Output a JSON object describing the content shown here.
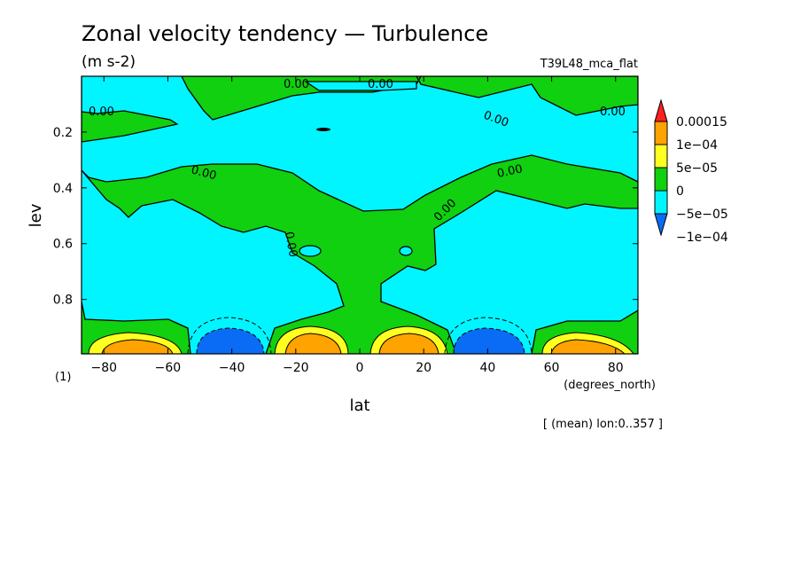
{
  "chart_data": {
    "type": "contour",
    "title": "Zonal velocity tendency — Turbulence",
    "units": "(m s-2)",
    "run_label": "T39L48_mca_flat",
    "xlabel": "lat",
    "ylabel": "lev",
    "x_unit_label": "(degrees_north)",
    "panel_label": "(1)",
    "mean_note": "[ (mean) lon:0..357 ]",
    "xlim": [
      -87,
      87
    ],
    "ylim": [
      0.995,
      0.0
    ],
    "x_ticks": [
      -80,
      -60,
      -40,
      -20,
      0,
      20,
      40,
      60,
      80
    ],
    "x_tick_labels": [
      "−80",
      "−60",
      "−40",
      "−20",
      "0",
      "20",
      "40",
      "60",
      "80"
    ],
    "y_ticks": [
      0.2,
      0.4,
      0.6,
      0.8
    ],
    "y_tick_labels": [
      "0.2",
      "0.4",
      "0.6",
      "0.8"
    ],
    "contour_labels": [
      "0.00",
      "0.00",
      "0.00",
      "0.00",
      "0.00",
      "0.00",
      "0.00",
      "0.00",
      "0.00",
      "0.00"
    ],
    "colorbar": {
      "levels": [
        -0.0001,
        -5e-05,
        0,
        5e-05,
        0.0001,
        0.00015
      ],
      "labels": [
        "−1e−04",
        "−5e−05",
        "0",
        "5e−05",
        "1e−04",
        "0.00015"
      ],
      "colors": [
        "#0a6cf5",
        "#00f5ff",
        "#10d010",
        "#ffff20",
        "#ffa300",
        "#ff2020"
      ],
      "extend": "both"
    },
    "features": [
      {
        "kind": "positive_max",
        "lat": -68,
        "lev": 0.98,
        "value": 0.0001
      },
      {
        "kind": "negative_min",
        "lat": -40,
        "lev": 0.98,
        "value": -0.0001
      },
      {
        "kind": "positive_max",
        "lat": -18,
        "lev": 0.98,
        "value": 0.0001
      },
      {
        "kind": "positive_max",
        "lat": 15,
        "lev": 0.98,
        "value": 0.0001
      },
      {
        "kind": "negative_min",
        "lat": 40,
        "lev": 0.98,
        "value": -0.0001
      },
      {
        "kind": "positive_max",
        "lat": 65,
        "lev": 0.98,
        "value": 0.0001
      }
    ]
  }
}
